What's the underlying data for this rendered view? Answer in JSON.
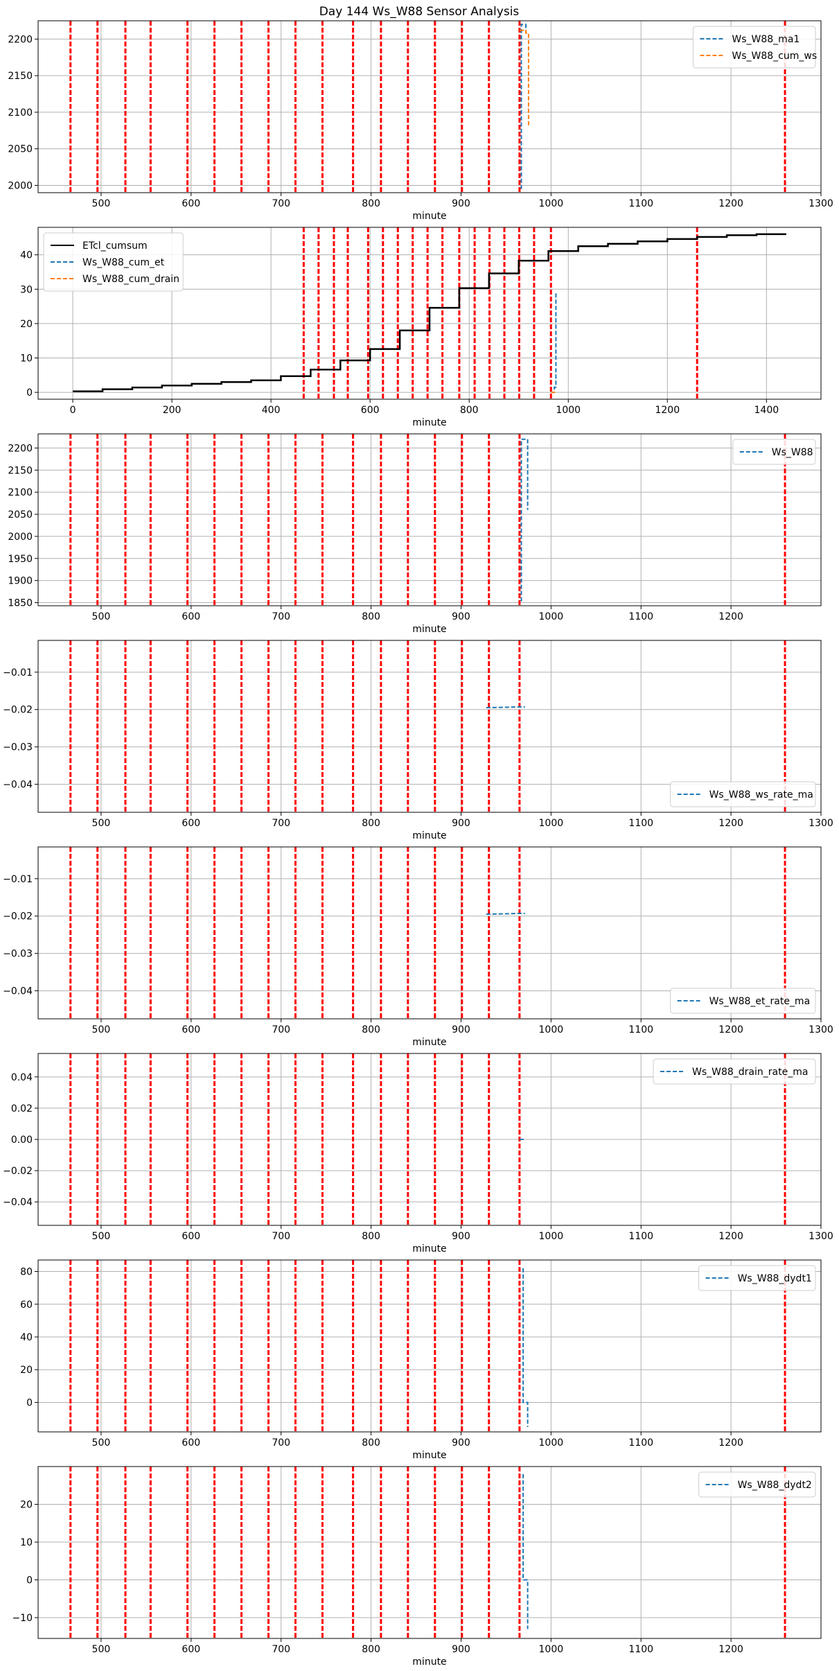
{
  "figure": {
    "title": "Day 144 Ws_W88 Sensor Analysis"
  },
  "colors": {
    "red": "#ff0000",
    "blue": "#1f77b4",
    "orange": "#ff7f0e",
    "black": "#000000",
    "grid": "#b0b0b0"
  },
  "red_lines": [
    466,
    496,
    527,
    555,
    596,
    626,
    656,
    686,
    716,
    746,
    780,
    811,
    841,
    871,
    901,
    931,
    965,
    1260
  ],
  "chart_data": [
    {
      "type": "line",
      "title": "",
      "xlabel": "minute",
      "ylabel": "",
      "xlim": [
        430,
        1300
      ],
      "ylim": [
        1990,
        2225
      ],
      "xticks": [
        500,
        600,
        700,
        800,
        900,
        1000,
        1100,
        1200,
        1300
      ],
      "yticks": [
        2000,
        2050,
        2100,
        2150,
        2200
      ],
      "legend": "top-right",
      "series": [
        {
          "name": "Ws_W88_ma1",
          "color": "#1f77b4",
          "style": "dashed",
          "x": [
            967,
            967,
            972,
            972
          ],
          "y": [
            1995,
            2220,
            2220,
            2210
          ]
        },
        {
          "name": "Ws_W88_cum_ws",
          "color": "#ff7f0e",
          "style": "dashed",
          "x": [
            965,
            972,
            972,
            975,
            975
          ],
          "y": [
            2212,
            2212,
            2208,
            2208,
            2080
          ]
        }
      ]
    },
    {
      "type": "line",
      "title": "",
      "xlabel": "minute",
      "ylabel": "",
      "xlim": [
        -70,
        1510
      ],
      "ylim": [
        -2,
        48
      ],
      "xticks": [
        0,
        200,
        400,
        600,
        800,
        1000,
        1200,
        1400
      ],
      "yticks": [
        0,
        10,
        20,
        30,
        40
      ],
      "legend": "top-left",
      "series": [
        {
          "name": "ETcl_cumsum",
          "color": "#000000",
          "style": "solid",
          "x": [
            0,
            60,
            60,
            120,
            120,
            180,
            180,
            240,
            240,
            300,
            300,
            360,
            360,
            420,
            420,
            480,
            480,
            540,
            540,
            600,
            600,
            660,
            660,
            720,
            720,
            780,
            780,
            840,
            840,
            900,
            900,
            960,
            960,
            1020,
            1020,
            1080,
            1080,
            1140,
            1140,
            1200,
            1200,
            1260,
            1260,
            1320,
            1320,
            1380,
            1380,
            1440
          ],
          "y": [
            0.3,
            0.3,
            0.9,
            0.9,
            1.4,
            1.4,
            2.0,
            2.0,
            2.5,
            2.5,
            3.0,
            3.0,
            3.5,
            3.5,
            4.7,
            4.7,
            6.6,
            6.6,
            9.3,
            9.3,
            12.6,
            12.6,
            18.0,
            18.0,
            24.6,
            24.6,
            30.3,
            30.3,
            34.6,
            34.6,
            38.3,
            38.3,
            41.1,
            41.1,
            42.5,
            42.5,
            43.2,
            43.2,
            43.9,
            43.9,
            44.6,
            44.6,
            45.2,
            45.2,
            45.7,
            45.7,
            46.0,
            46.0
          ]
        },
        {
          "name": "Ws_W88_cum_et",
          "color": "#1f77b4",
          "style": "dashed",
          "x": [
            965,
            972,
            972,
            975,
            975
          ],
          "y": [
            0,
            0,
            1.5,
            1.5,
            29
          ]
        },
        {
          "name": "Ws_W88_cum_drain",
          "color": "#ff7f0e",
          "style": "dashed",
          "x": [
            965,
            975
          ],
          "y": [
            0,
            0
          ]
        }
      ]
    },
    {
      "type": "line",
      "title": "",
      "xlabel": "minute",
      "ylabel": "",
      "xlim": [
        430,
        1300
      ],
      "ylim": [
        1843,
        2232
      ],
      "xticks": [
        500,
        600,
        700,
        800,
        900,
        1000,
        1100,
        1200
      ],
      "yticks": [
        1850,
        1900,
        1950,
        2000,
        2050,
        2100,
        2150,
        2200
      ],
      "legend": "top-right",
      "series": [
        {
          "name": "Ws_W88",
          "color": "#1f77b4",
          "style": "dashed",
          "x": [
            967,
            967,
            969,
            969,
            974,
            974
          ],
          "y": [
            1853,
            2220,
            2220,
            2220,
            2220,
            2060
          ]
        }
      ]
    },
    {
      "type": "line",
      "title": "",
      "xlabel": "minute",
      "ylabel": "",
      "xlim": [
        430,
        1300
      ],
      "ylim": [
        -0.0475,
        -0.0015
      ],
      "xticks": [
        500,
        600,
        700,
        800,
        900,
        1000,
        1100,
        1200,
        1300
      ],
      "yticks": [
        -0.01,
        -0.02,
        -0.03,
        -0.04
      ],
      "legend": "bottom-right",
      "series": [
        {
          "name": "Ws_W88_ws_rate_ma",
          "color": "#1f77b4",
          "style": "dashed",
          "x": [
            928,
            932,
            965,
            971
          ],
          "y": [
            -0.0195,
            -0.0195,
            -0.0193,
            -0.0193
          ]
        }
      ]
    },
    {
      "type": "line",
      "title": "",
      "xlabel": "minute",
      "ylabel": "",
      "xlim": [
        430,
        1300
      ],
      "ylim": [
        -0.0475,
        -0.0015
      ],
      "xticks": [
        500,
        600,
        700,
        800,
        900,
        1000,
        1100,
        1200,
        1300
      ],
      "yticks": [
        -0.01,
        -0.02,
        -0.03,
        -0.04
      ],
      "legend": "bottom-right",
      "series": [
        {
          "name": "Ws_W88_et_rate_ma",
          "color": "#1f77b4",
          "style": "dashed",
          "x": [
            928,
            932,
            965,
            971
          ],
          "y": [
            -0.0195,
            -0.0195,
            -0.0193,
            -0.0193
          ]
        }
      ]
    },
    {
      "type": "line",
      "title": "",
      "xlabel": "minute",
      "ylabel": "",
      "xlim": [
        430,
        1300
      ],
      "ylim": [
        -0.055,
        0.055
      ],
      "xticks": [
        500,
        600,
        700,
        800,
        900,
        1000,
        1100,
        1200,
        1300
      ],
      "yticks": [
        0.04,
        0.02,
        0.0,
        -0.02,
        -0.04
      ],
      "ytick_labels": [
        "0.04",
        "0.02",
        "0.00",
        "−0.02",
        "−0.04"
      ],
      "legend": "top-right",
      "series": [
        {
          "name": "Ws_W88_drain_rate_ma",
          "color": "#1f77b4",
          "style": "dashed",
          "x": [
            965,
            971
          ],
          "y": [
            0,
            0
          ]
        }
      ]
    },
    {
      "type": "line",
      "title": "",
      "xlabel": "minute",
      "ylabel": "",
      "xlim": [
        430,
        1300
      ],
      "ylim": [
        -18,
        87
      ],
      "xticks": [
        500,
        600,
        700,
        800,
        900,
        1000,
        1100,
        1200
      ],
      "yticks": [
        80,
        60,
        40,
        20,
        0
      ],
      "legend": "top-right",
      "series": [
        {
          "name": "Ws_W88_dydt1",
          "color": "#1f77b4",
          "style": "dashed",
          "x": [
            969,
            969,
            972,
            972,
            974,
            974
          ],
          "y": [
            82,
            0,
            0,
            0,
            0,
            -15
          ]
        }
      ]
    },
    {
      "type": "line",
      "title": "",
      "xlabel": "minute",
      "ylabel": "",
      "xlim": [
        430,
        1300
      ],
      "ylim": [
        -15.5,
        30
      ],
      "xticks": [
        500,
        600,
        700,
        800,
        900,
        1000,
        1100,
        1200
      ],
      "yticks": [
        20,
        10,
        0,
        -10
      ],
      "ytick_labels": [
        "20",
        "10",
        "0",
        "−10"
      ],
      "legend": "top-right",
      "series": [
        {
          "name": "Ws_W88_dydt2",
          "color": "#1f77b4",
          "style": "dashed",
          "x": [
            969,
            969,
            972,
            972,
            974,
            974
          ],
          "y": [
            28,
            0,
            0,
            0,
            0,
            -13
          ]
        }
      ]
    }
  ]
}
